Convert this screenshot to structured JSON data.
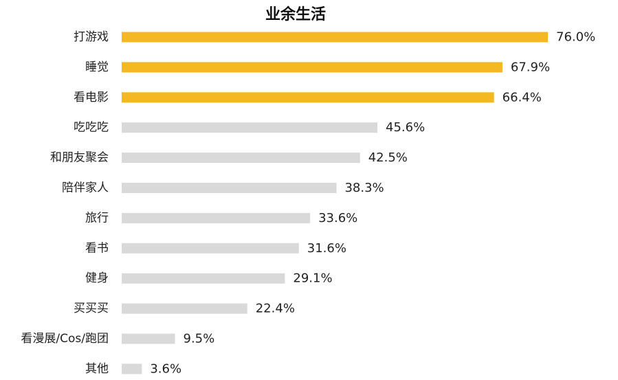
{
  "chart_data": {
    "type": "bar",
    "orientation": "horizontal",
    "title": "业余生活",
    "xlabel": "",
    "ylabel": "",
    "unit": "%",
    "xlim": [
      0,
      76
    ],
    "grid": false,
    "legend": "none",
    "categories": [
      "打游戏",
      "睡觉",
      "看电影",
      "吃吃吃",
      "和朋友聚会",
      "陪伴家人",
      "旅行",
      "看书",
      "健身",
      "买买买",
      "看漫展/Cos/跑团",
      "其他"
    ],
    "values": [
      76.0,
      67.9,
      66.4,
      45.6,
      42.5,
      38.3,
      33.6,
      31.6,
      29.1,
      22.4,
      9.5,
      3.6
    ],
    "value_labels": [
      "76.0%",
      "67.9%",
      "66.4%",
      "45.6%",
      "42.5%",
      "38.3%",
      "33.6%",
      "31.6%",
      "29.1%",
      "22.4%",
      "9.5%",
      "3.6%"
    ],
    "highlight_count": 3,
    "colors": {
      "highlight": "#F3B822",
      "normal": "#D9D9D9",
      "text": "#222222"
    }
  }
}
